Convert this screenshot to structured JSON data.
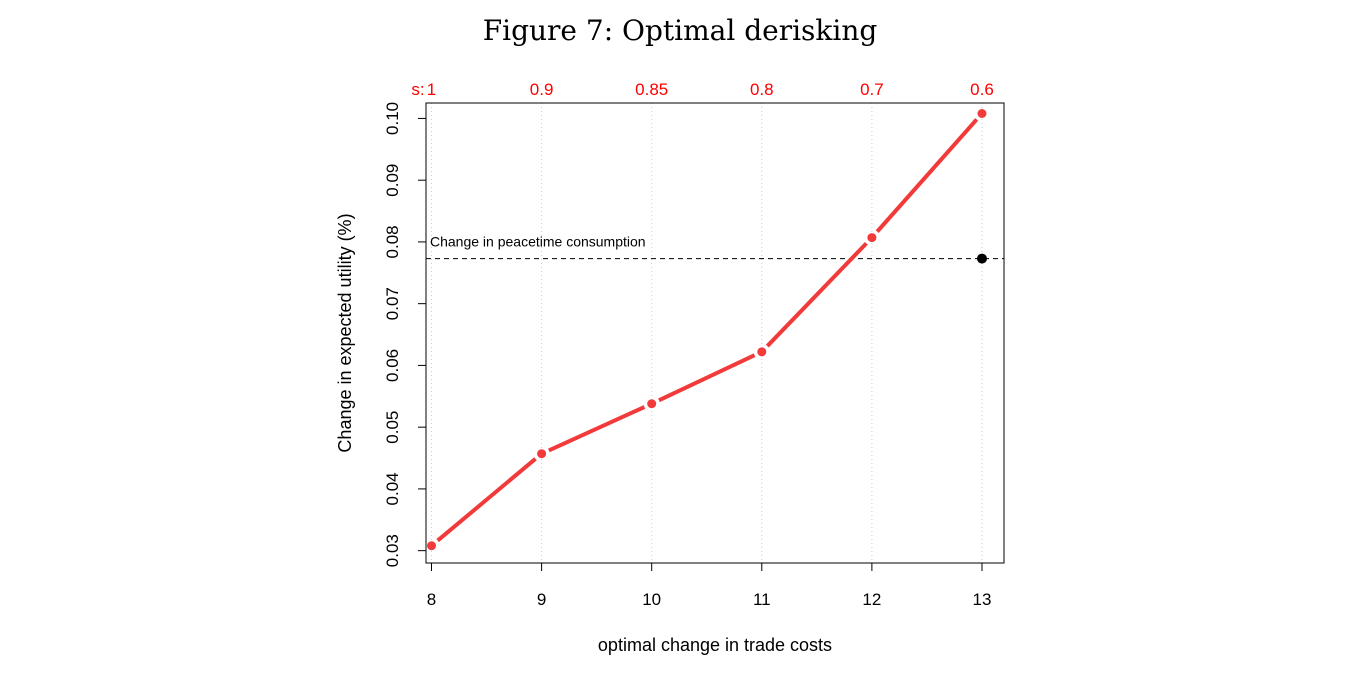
{
  "figure": {
    "title": "Figure 7: Optimal derisking"
  },
  "chart_data": {
    "type": "line",
    "title": "Figure 7: Optimal derisking",
    "xlabel": "optimal change in trade costs",
    "ylabel": "Change in expected utility (%)",
    "x": [
      8,
      9,
      10,
      11,
      12,
      13
    ],
    "xlim": [
      7.95,
      13.2
    ],
    "ylim": [
      0.028,
      0.1025
    ],
    "x_ticks": [
      "8",
      "9",
      "10",
      "11",
      "12",
      "13"
    ],
    "y_ticks": [
      "0.03",
      "0.04",
      "0.05",
      "0.06",
      "0.07",
      "0.08",
      "0.09",
      "0.10"
    ],
    "top_axis": {
      "prefix": "s:",
      "labels": [
        "1",
        "0.9",
        "0.85",
        "0.8",
        "0.7",
        "0.6"
      ],
      "color": "#ff0000"
    },
    "series": [
      {
        "values": [
          0.0308,
          0.0457,
          0.0538,
          0.0622,
          0.0807,
          0.1008
        ],
        "color": "#f23a3a"
      }
    ],
    "reference": {
      "label": "Change in peacetime consumption",
      "y": 0.0773,
      "point_x": 13,
      "style": "dashed",
      "color": "#000000"
    },
    "grid": "vertical dotted"
  }
}
